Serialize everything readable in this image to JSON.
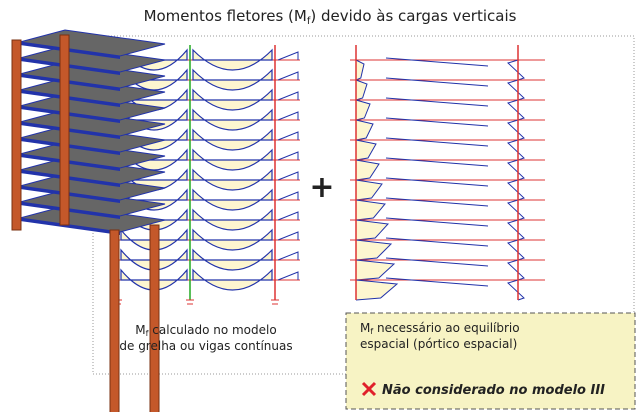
{
  "title": {
    "before": "Momentos fletores (M",
    "sub": "f",
    "after": ") devido às cargas verticais"
  },
  "left_caption": {
    "symbol": "M",
    "sub": "f",
    "line1": " calculado no modelo",
    "line2": "de grelha ou vigas contínuas"
  },
  "operator": "+",
  "note": {
    "symbol": "M",
    "sub": "f",
    "line1": " necessário ao equilíbrio",
    "line2": "espacial (pórtico espacial)",
    "warning": "Não considerado no modelo III"
  }
}
